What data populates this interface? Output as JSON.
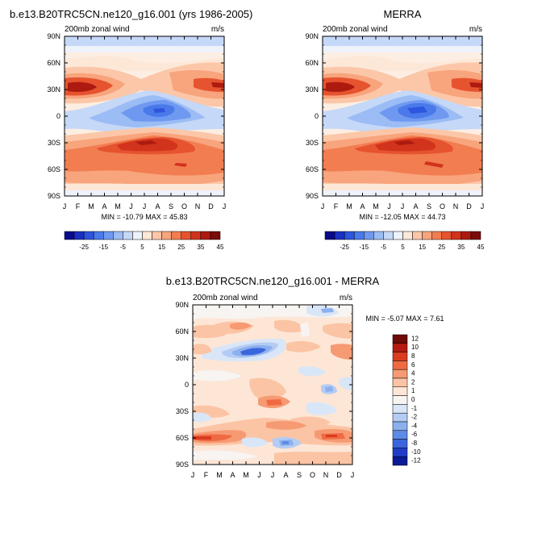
{
  "chart_data": [
    {
      "type": "heatmap",
      "title": "b.e13.B20TRC5CN.ne120_g16.001 (yrs 1986-2005)",
      "subtitle_left": "200mb zonal wind",
      "subtitle_right": "m/s",
      "x_ticks": [
        "J",
        "F",
        "M",
        "A",
        "M",
        "J",
        "J",
        "A",
        "S",
        "O",
        "N",
        "D",
        "J"
      ],
      "y_ticks": [
        "90N",
        "60N",
        "30N",
        "0",
        "30S",
        "60S",
        "90S"
      ],
      "ylim": [
        -90,
        90
      ],
      "stats": "MIN = -10.79 MAX =  45.83",
      "colorbar_labels": [
        "-25",
        "-15",
        "-5",
        "5",
        "15",
        "25",
        "35",
        "45"
      ]
    },
    {
      "type": "heatmap",
      "title": "MERRA",
      "subtitle_left": "200mb zonal wind",
      "subtitle_right": "m/s",
      "x_ticks": [
        "J",
        "F",
        "M",
        "A",
        "M",
        "J",
        "J",
        "A",
        "S",
        "O",
        "N",
        "D",
        "J"
      ],
      "y_ticks": [
        "90N",
        "60N",
        "30N",
        "0",
        "30S",
        "60S",
        "90S"
      ],
      "ylim": [
        -90,
        90
      ],
      "stats": "MIN = -12.05 MAX =  44.73",
      "colorbar_labels": [
        "-25",
        "-15",
        "-5",
        "5",
        "15",
        "25",
        "35",
        "45"
      ]
    },
    {
      "type": "heatmap",
      "title": "b.e13.B20TRC5CN.ne120_g16.001 - MERRA",
      "subtitle_left": "200mb zonal wind",
      "subtitle_right": "m/s",
      "x_ticks": [
        "J",
        "F",
        "M",
        "A",
        "M",
        "J",
        "J",
        "A",
        "S",
        "O",
        "N",
        "D",
        "J"
      ],
      "y_ticks": [
        "90N",
        "60N",
        "30N",
        "0",
        "30S",
        "60S",
        "90S"
      ],
      "ylim": [
        -90,
        90
      ],
      "stats": "MIN =  -5.07 MAX =   7.61",
      "colorbar_labels": [
        "12",
        "10",
        "8",
        "6",
        "4",
        "2",
        "1",
        "0",
        "-1",
        "-2",
        "-4",
        "-6",
        "-8",
        "-10",
        "-12"
      ]
    }
  ],
  "colors": {
    "full_scale": [
      "#0a0a8c",
      "#1a2fc4",
      "#2d55de",
      "#4a79ea",
      "#6f99f0",
      "#9bbcf4",
      "#c5d8f8",
      "#eef2fb",
      "#fde8d8",
      "#fbc7a8",
      "#f8a47c",
      "#f27d51",
      "#e6532f",
      "#d2331c",
      "#ad1a0f",
      "#7a0b08"
    ],
    "diff_scale": [
      "#6e0a07",
      "#b51a10",
      "#d93b20",
      "#ef6a43",
      "#f69a73",
      "#fbc4a4",
      "#fde6d6",
      "#f7f4f2",
      "#d9e6f8",
      "#b4ccf4",
      "#8cb0ee",
      "#5d8ce6",
      "#3a66dd",
      "#1f3ec8",
      "#0b1b96"
    ]
  }
}
